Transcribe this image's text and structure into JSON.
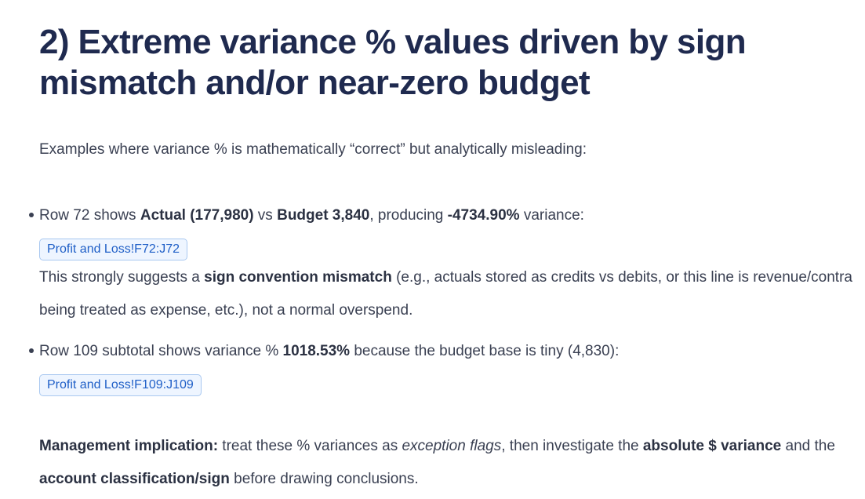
{
  "heading": "2) Extreme variance % values driven by sign mismatch and/or near-zero budget",
  "intro": "Examples where variance % is mathematically “correct” but analytically misleading:",
  "bullets": [
    {
      "parts": {
        "t1": "Row 72 shows ",
        "b1": "Actual (177,980)",
        "t2": " vs ",
        "b2": "Budget 3,840",
        "t3": ", producing ",
        "b3": "-4734.90%",
        "t4": " variance:"
      },
      "ref": "Profit and Loss!F72:J72",
      "follow": {
        "t1": "This strongly suggests a ",
        "b1": "sign convention mismatch",
        "t2": " (e.g., actuals stored as credits vs debits, or this line is revenue/contra being treated as expense, etc.), not a normal overspend."
      }
    },
    {
      "parts": {
        "t1": "Row 109 subtotal shows variance % ",
        "b1": "1018.53%",
        "t2": " because the budget base is tiny (4,830):"
      },
      "ref": "Profit and Loss!F109:J109"
    }
  ],
  "management": {
    "label": "Management implication:",
    "t1": " treat these % variances as ",
    "i1": "exception flags",
    "t2": ", then investigate the ",
    "b1": "absolute $ variance",
    "t3": " and the ",
    "b2": "account classification/sign",
    "t4": " before drawing conclusions."
  }
}
